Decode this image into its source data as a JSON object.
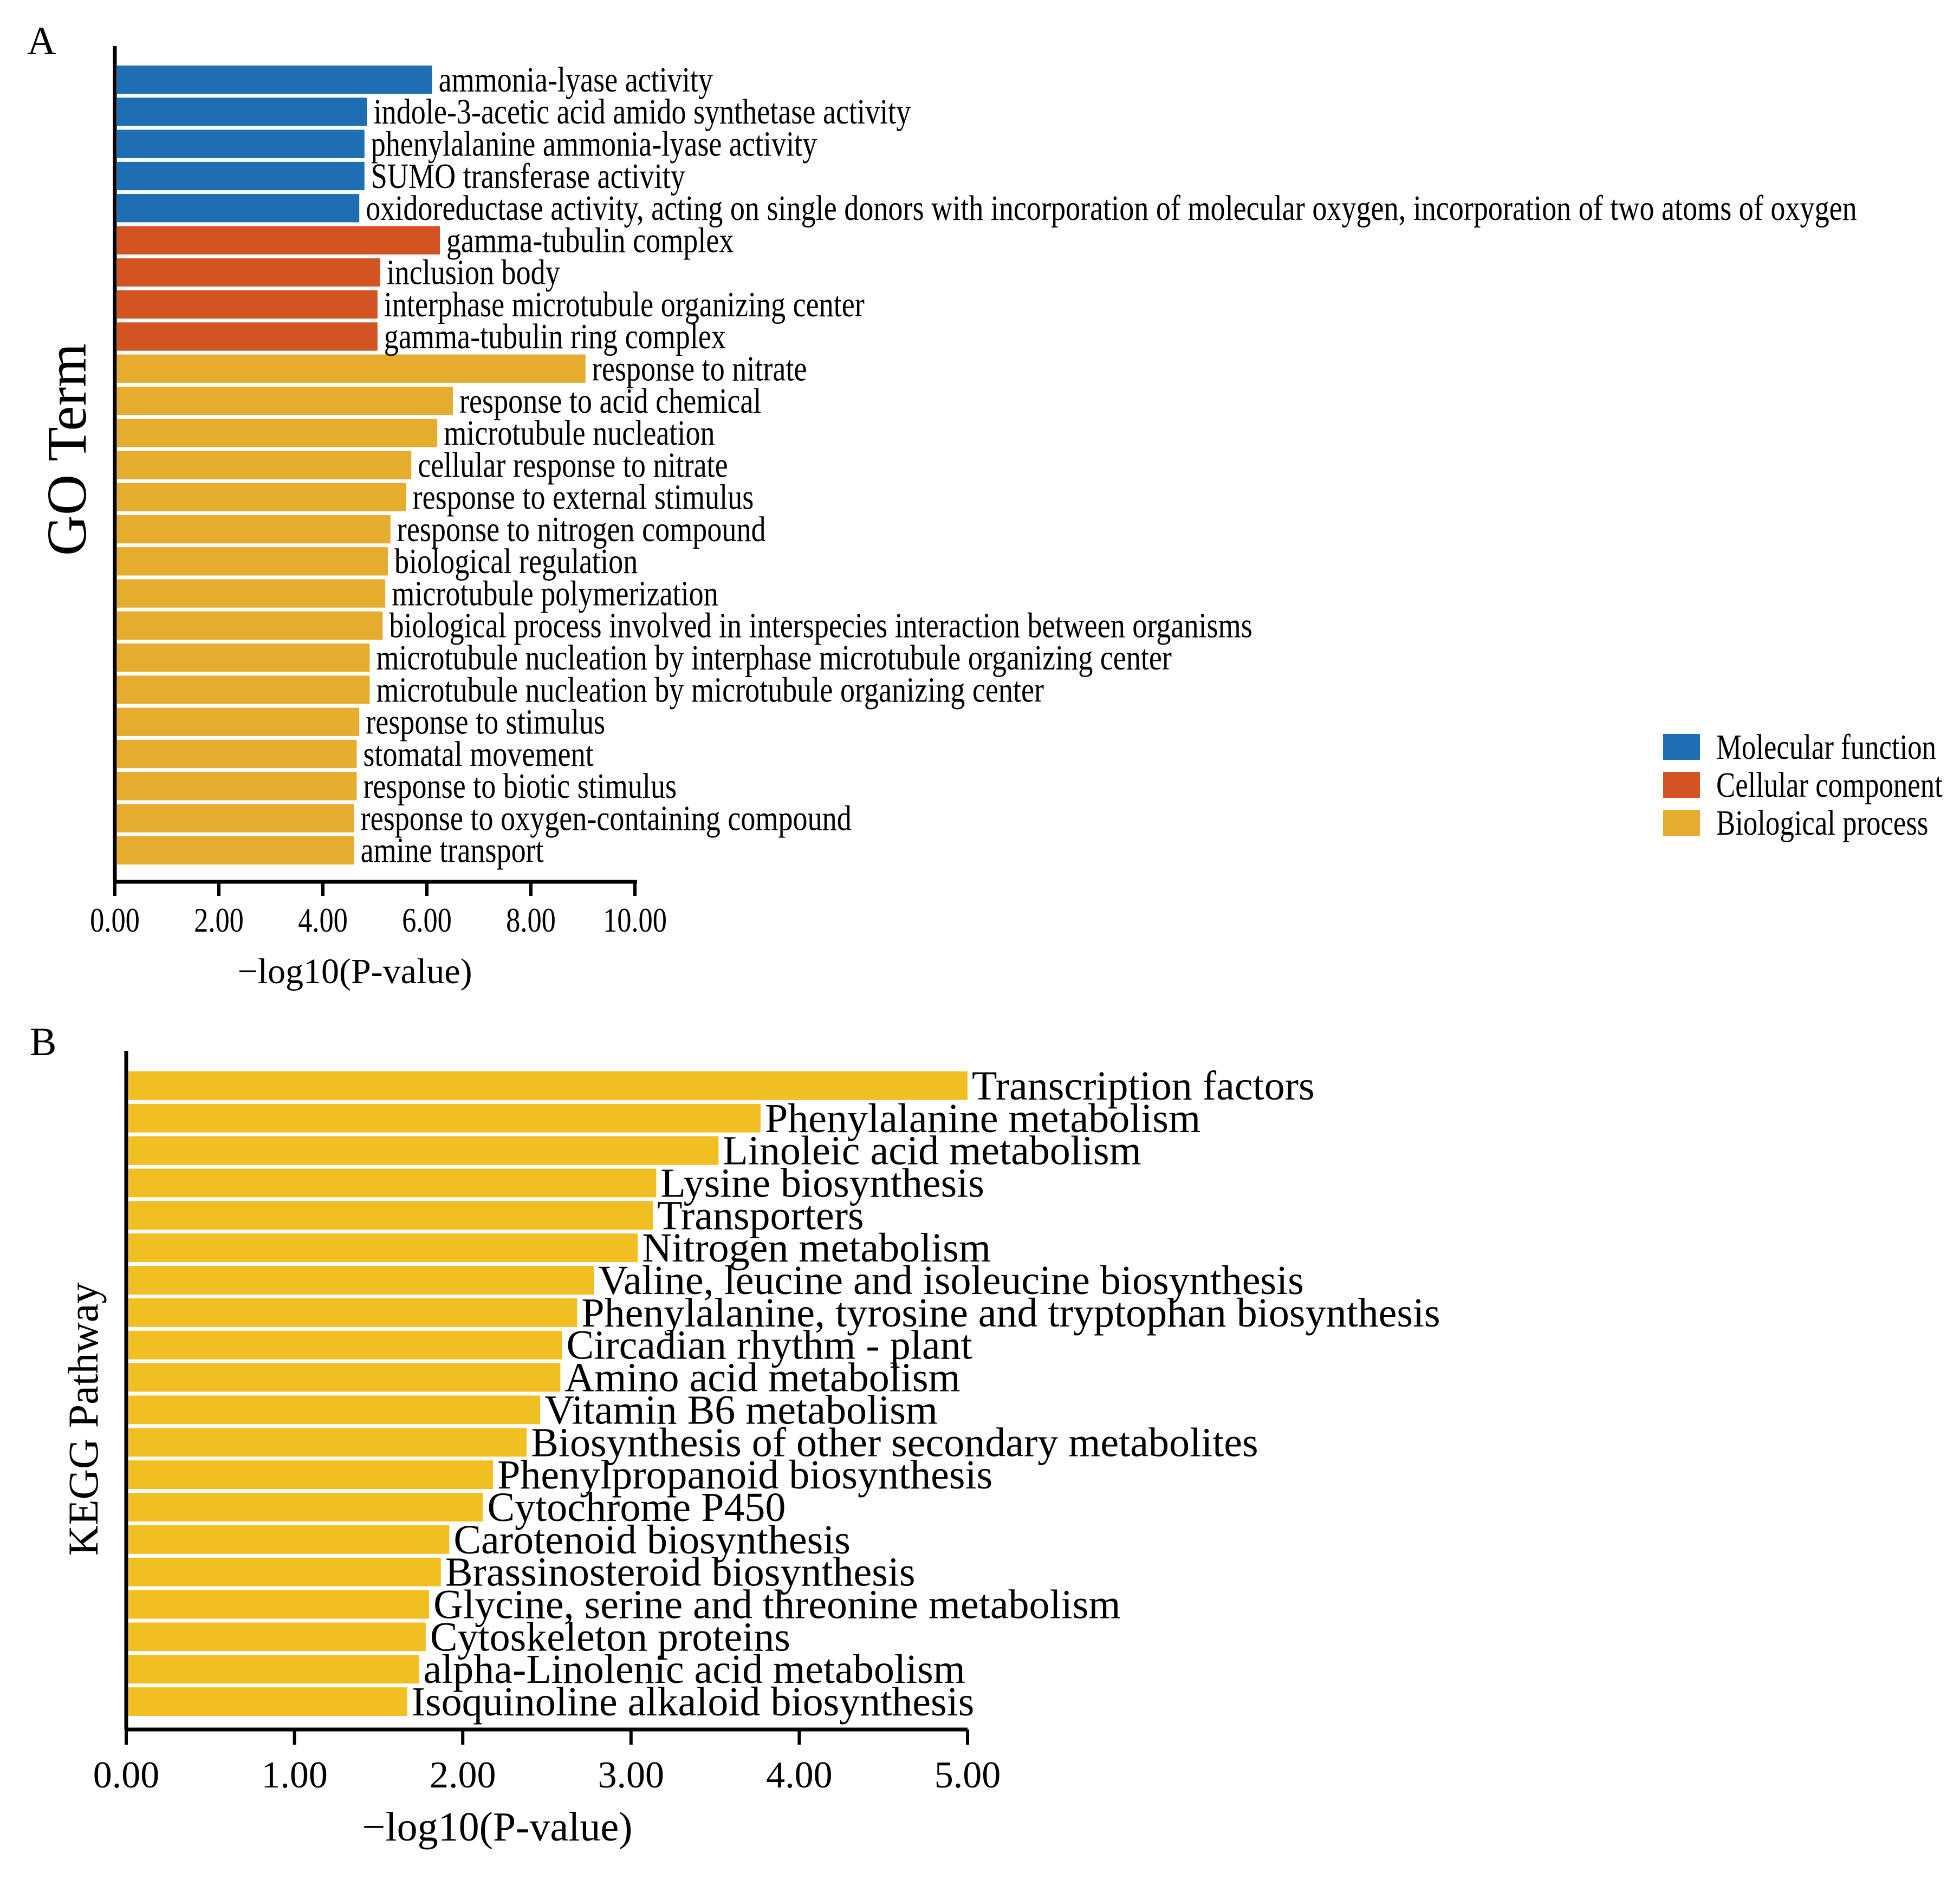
{
  "colors": {
    "molecular_function": "#1f6db3",
    "cellular_component": "#d35423",
    "biological_process": "#e5ac2e",
    "kegg_bar": "#f2bf23",
    "axis": "#000000"
  },
  "chart_data": [
    {
      "panel_label": "A",
      "type": "bar",
      "orientation": "horizontal",
      "ylabel": "GO Term",
      "xlabel": "−log10(P-value)",
      "xlim": [
        0,
        10
      ],
      "xticks": [
        "0.00",
        "2.00",
        "4.00",
        "6.00",
        "8.00",
        "10.00"
      ],
      "grid": false,
      "legend_position": "right",
      "legend": [
        {
          "key": "molecular_function",
          "label": "Molecular function"
        },
        {
          "key": "cellular_component",
          "label": "Cellular component"
        },
        {
          "key": "biological_process",
          "label": "Biological process"
        }
      ],
      "categories": [
        "ammonia-lyase activity",
        "indole-3-acetic acid amido synthetase activity",
        "phenylalanine ammonia-lyase activity",
        "SUMO transferase activity",
        "oxidoreductase activity, acting on single donors with incorporation of molecular oxygen, incorporation of two atoms of oxygen",
        "gamma-tubulin complex",
        "inclusion body",
        "interphase microtubule organizing center",
        "gamma-tubulin ring complex",
        "response to nitrate",
        "response to acid chemical",
        "microtubule nucleation",
        "cellular response to nitrate",
        "response to external stimulus",
        "response to nitrogen compound",
        "biological regulation",
        "microtubule polymerization",
        "biological process involved in interspecies interaction between organisms",
        "microtubule nucleation by interphase microtubule organizing center",
        "microtubule nucleation by microtubule organizing center",
        "response to stimulus",
        "stomatal movement",
        "response to biotic stimulus",
        "response to oxygen-containing compound",
        "amine transport"
      ],
      "values": [
        6.1,
        4.85,
        4.8,
        4.8,
        4.7,
        6.25,
        5.1,
        5.05,
        5.05,
        9.05,
        6.5,
        6.2,
        5.7,
        5.6,
        5.3,
        5.25,
        5.2,
        5.15,
        4.9,
        4.9,
        4.7,
        4.65,
        4.65,
        4.6,
        4.6
      ],
      "groups": [
        "molecular_function",
        "molecular_function",
        "molecular_function",
        "molecular_function",
        "molecular_function",
        "cellular_component",
        "cellular_component",
        "cellular_component",
        "cellular_component",
        "biological_process",
        "biological_process",
        "biological_process",
        "biological_process",
        "biological_process",
        "biological_process",
        "biological_process",
        "biological_process",
        "biological_process",
        "biological_process",
        "biological_process",
        "biological_process",
        "biological_process",
        "biological_process",
        "biological_process",
        "biological_process"
      ]
    },
    {
      "panel_label": "B",
      "type": "bar",
      "orientation": "horizontal",
      "ylabel": "KEGG Pathway",
      "xlabel": "−log10(P-value)",
      "xlim": [
        0,
        5
      ],
      "xticks": [
        "0.00",
        "1.00",
        "2.00",
        "3.00",
        "4.00",
        "5.00"
      ],
      "grid": false,
      "categories": [
        "Transcription factors",
        "Phenylalanine metabolism",
        "Linoleic acid metabolism",
        "Lysine biosynthesis",
        "Transporters",
        "Nitrogen metabolism",
        "Valine, leucine and isoleucine biosynthesis",
        "Phenylalanine, tyrosine and tryptophan biosynthesis",
        "Circadian rhythm - plant",
        "Amino acid metabolism",
        "Vitamin B6 metabolism",
        "Biosynthesis of other secondary metabolites",
        "Phenylpropanoid biosynthesis",
        "Cytochrome P450",
        "Carotenoid biosynthesis",
        "Brassinosteroid biosynthesis",
        "Glycine, serine and threonine metabolism",
        "Cytoskeleton proteins",
        "alpha-Linolenic acid metabolism",
        "Isoquinoline alkaloid biosynthesis"
      ],
      "values": [
        5.0,
        3.77,
        3.52,
        3.15,
        3.13,
        3.04,
        2.78,
        2.68,
        2.59,
        2.58,
        2.46,
        2.38,
        2.18,
        2.12,
        1.92,
        1.87,
        1.8,
        1.78,
        1.74,
        1.67
      ]
    }
  ]
}
